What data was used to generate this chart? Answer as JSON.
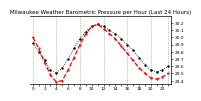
{
  "title": "Milwaukee Weather Barometric Pressure per Hour (Last 24 Hours)",
  "ylim": [
    29.35,
    30.3
  ],
  "yticks": [
    29.4,
    29.5,
    29.6,
    29.7,
    29.8,
    29.9,
    30.0,
    30.1,
    30.2
  ],
  "hours": [
    0,
    1,
    2,
    3,
    4,
    5,
    6,
    7,
    8,
    9,
    10,
    11,
    12,
    13,
    14,
    15,
    16,
    17,
    18,
    19,
    20,
    21,
    22,
    23
  ],
  "red_line": [
    30.0,
    29.85,
    29.65,
    29.48,
    29.38,
    29.4,
    29.55,
    29.72,
    29.9,
    30.05,
    30.15,
    30.18,
    30.12,
    30.05,
    29.98,
    29.88,
    29.78,
    29.68,
    29.58,
    29.5,
    29.44,
    29.42,
    29.45,
    29.5
  ],
  "black_line": [
    29.92,
    29.8,
    29.68,
    29.55,
    29.5,
    29.58,
    29.7,
    29.85,
    29.98,
    30.08,
    30.15,
    30.18,
    30.15,
    30.1,
    30.05,
    29.98,
    29.9,
    29.82,
    29.72,
    29.62,
    29.55,
    29.52,
    29.55,
    29.6
  ],
  "bg_color": "#ffffff",
  "red_color": "#ff0000",
  "black_color": "#000000",
  "grid_color": "#888888",
  "title_fontsize": 4.0,
  "tick_fontsize": 3.2,
  "grid_positions": [
    0,
    4,
    8,
    12,
    16,
    20,
    23
  ]
}
